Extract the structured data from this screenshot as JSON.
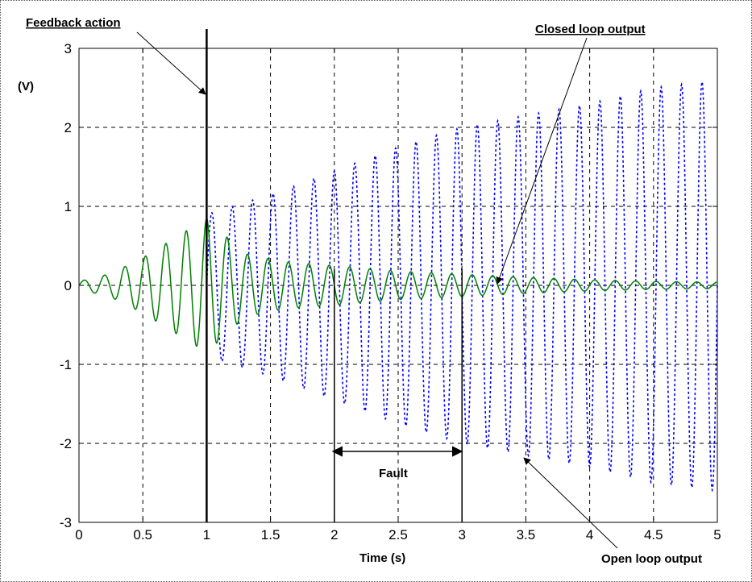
{
  "chart_data": {
    "type": "line",
    "title": "",
    "xlabel": "Time (s)",
    "ylabel": "(V)",
    "xlim": [
      0,
      5
    ],
    "ylim": [
      -3,
      3
    ],
    "xticks": [
      0,
      0.5,
      1,
      1.5,
      2,
      2.5,
      3,
      3.5,
      4,
      4.5,
      5
    ],
    "xtick_labels": [
      "0",
      "0.5",
      "1",
      "1.5",
      "2",
      "2.5",
      "3",
      "3.5",
      "4",
      "4.5",
      "5"
    ],
    "yticks": [
      -3,
      -2,
      -1,
      0,
      1,
      2,
      3
    ],
    "ytick_labels": [
      "-3",
      "-2",
      "-1",
      "0",
      "1",
      "2",
      "3"
    ],
    "grid": true,
    "series": [
      {
        "name": "Open loop output",
        "style": "dotted",
        "color": "#0000ff",
        "frequency_hz": 6.25,
        "x_start": 1.0,
        "x_end": 5.0,
        "envelope": {
          "x": [
            1.0,
            1.5,
            2.0,
            2.5,
            3.0,
            3.5,
            4.0,
            4.5,
            5.0
          ],
          "y": [
            0.9,
            1.15,
            1.45,
            1.75,
            2.0,
            2.15,
            2.3,
            2.5,
            2.6
          ]
        }
      },
      {
        "name": "Closed loop output",
        "style": "solid",
        "color": "#008000",
        "frequency_hz": 6.25,
        "x_start": 0.0,
        "x_end": 5.0,
        "envelope": {
          "x": [
            0.0,
            0.25,
            0.5,
            0.75,
            1.0,
            1.1,
            1.3,
            1.6,
            2.0,
            2.5,
            3.0,
            3.5,
            4.0,
            4.5,
            5.0
          ],
          "y": [
            0.05,
            0.15,
            0.35,
            0.6,
            0.85,
            0.7,
            0.4,
            0.3,
            0.25,
            0.18,
            0.14,
            0.1,
            0.07,
            0.05,
            0.04
          ]
        }
      }
    ],
    "markers": [
      {
        "x": 1.0,
        "label": "Feedback action"
      },
      {
        "x": 2.0,
        "label": ""
      },
      {
        "x": 3.0,
        "label": ""
      }
    ],
    "annotations": {
      "feedback": "Feedback action",
      "closed": "Closed loop output",
      "open": "Open loop output",
      "fault": "Fault"
    }
  }
}
